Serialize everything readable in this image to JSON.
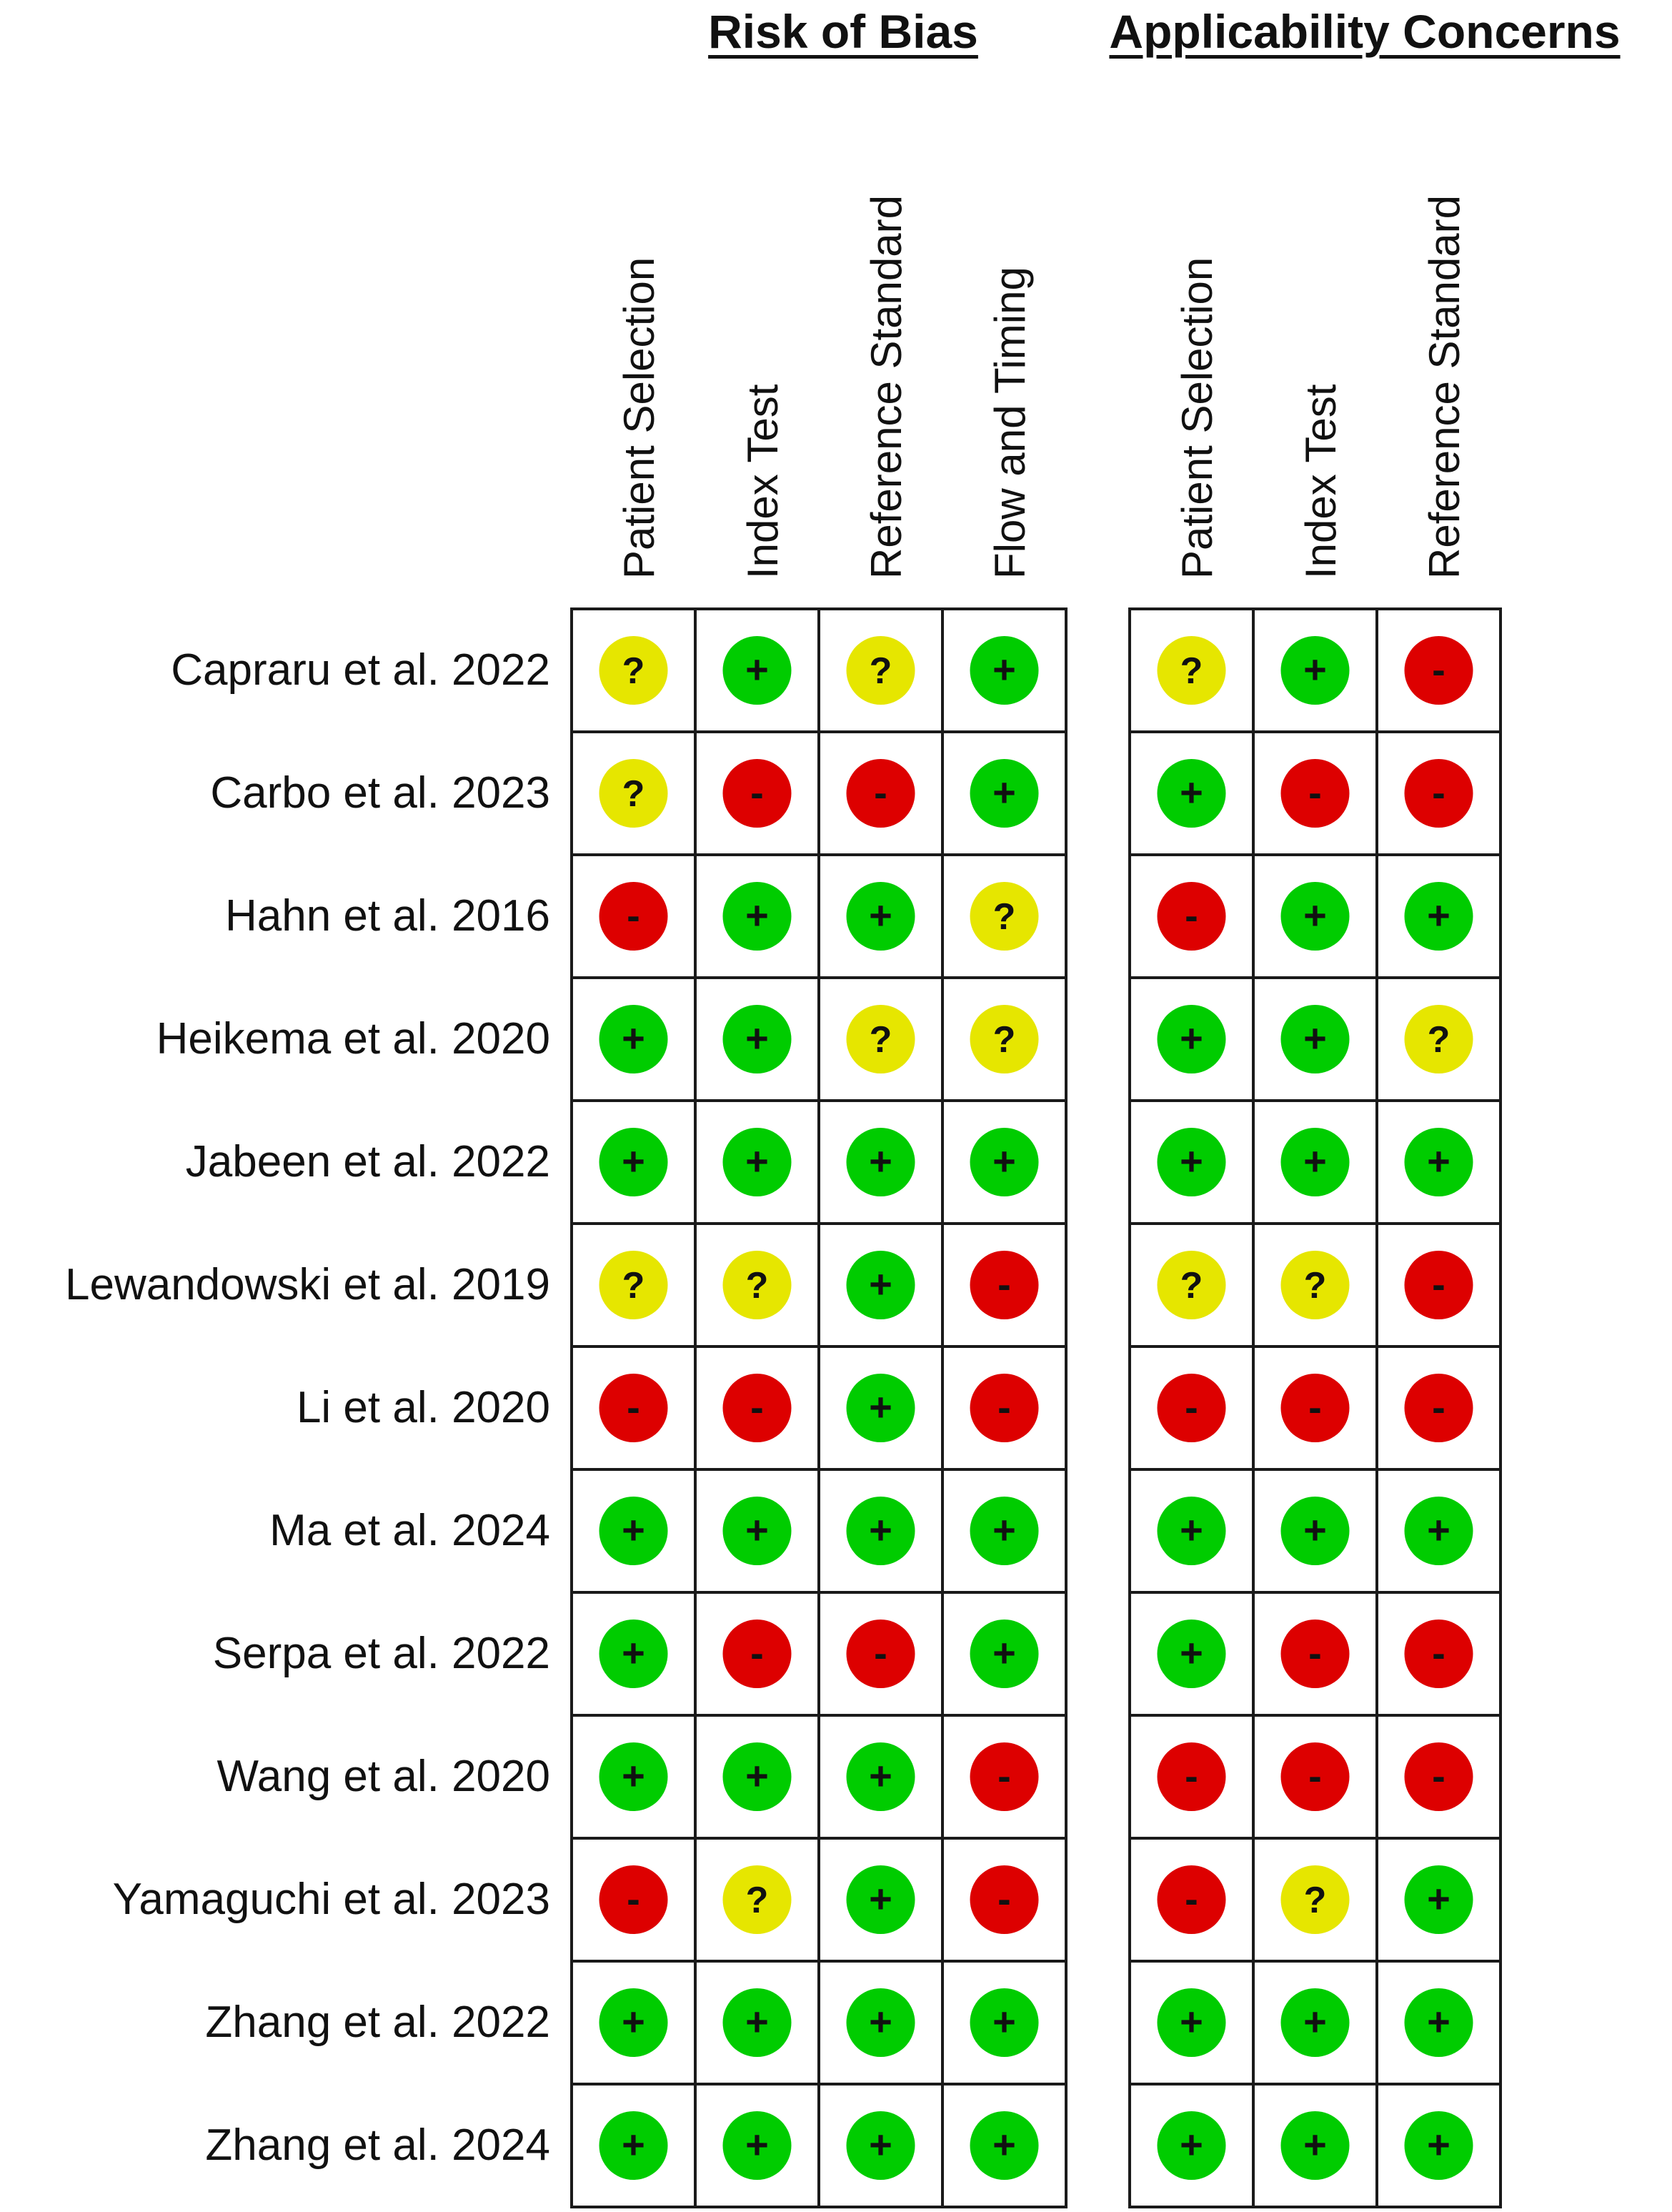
{
  "chart_data": {
    "type": "table",
    "groups": [
      {
        "title": "Risk of Bias",
        "columns": [
          "Patient Selection",
          "Index Test",
          "Reference Standard",
          "Flow and Timing"
        ]
      },
      {
        "title": "Applicability Concerns",
        "columns": [
          "Patient Selection",
          "Index Test",
          "Reference Standard"
        ]
      }
    ],
    "studies": [
      {
        "name": "Capraru et al. 2022",
        "risk_of_bias": [
          "?",
          "+",
          "?",
          "+"
        ],
        "applicability": [
          "?",
          "+",
          "-"
        ]
      },
      {
        "name": "Carbo et al. 2023",
        "risk_of_bias": [
          "?",
          "-",
          "-",
          "+"
        ],
        "applicability": [
          "+",
          "-",
          "-"
        ]
      },
      {
        "name": "Hahn et al. 2016",
        "risk_of_bias": [
          "-",
          "+",
          "+",
          "?"
        ],
        "applicability": [
          "-",
          "+",
          "+"
        ]
      },
      {
        "name": "Heikema et al. 2020",
        "risk_of_bias": [
          "+",
          "+",
          "?",
          "?"
        ],
        "applicability": [
          "+",
          "+",
          "?"
        ]
      },
      {
        "name": "Jabeen et al. 2022",
        "risk_of_bias": [
          "+",
          "+",
          "+",
          "+"
        ],
        "applicability": [
          "+",
          "+",
          "+"
        ]
      },
      {
        "name": "Lewandowski et al. 2019",
        "risk_of_bias": [
          "?",
          "?",
          "+",
          "-"
        ],
        "applicability": [
          "?",
          "?",
          "-"
        ]
      },
      {
        "name": "Li et al. 2020",
        "risk_of_bias": [
          "-",
          "-",
          "+",
          "-"
        ],
        "applicability": [
          "-",
          "-",
          "-"
        ]
      },
      {
        "name": "Ma et al. 2024",
        "risk_of_bias": [
          "+",
          "+",
          "+",
          "+"
        ],
        "applicability": [
          "+",
          "+",
          "+"
        ]
      },
      {
        "name": "Serpa et al. 2022",
        "risk_of_bias": [
          "+",
          "-",
          "-",
          "+"
        ],
        "applicability": [
          "+",
          "-",
          "-"
        ]
      },
      {
        "name": "Wang et al. 2020",
        "risk_of_bias": [
          "+",
          "+",
          "+",
          "-"
        ],
        "applicability": [
          "-",
          "-",
          "-"
        ]
      },
      {
        "name": "Yamaguchi et al. 2023",
        "risk_of_bias": [
          "-",
          "?",
          "+",
          "-"
        ],
        "applicability": [
          "-",
          "?",
          "+"
        ]
      },
      {
        "name": "Zhang et al. 2022",
        "risk_of_bias": [
          "+",
          "+",
          "+",
          "+"
        ],
        "applicability": [
          "+",
          "+",
          "+"
        ]
      },
      {
        "name": "Zhang et al. 2024",
        "risk_of_bias": [
          "+",
          "+",
          "+",
          "+"
        ],
        "applicability": [
          "+",
          "+",
          "+"
        ]
      }
    ],
    "colors": {
      "+": "#00cc00",
      "-": "#dd0000",
      "?": "#e6e600"
    }
  }
}
